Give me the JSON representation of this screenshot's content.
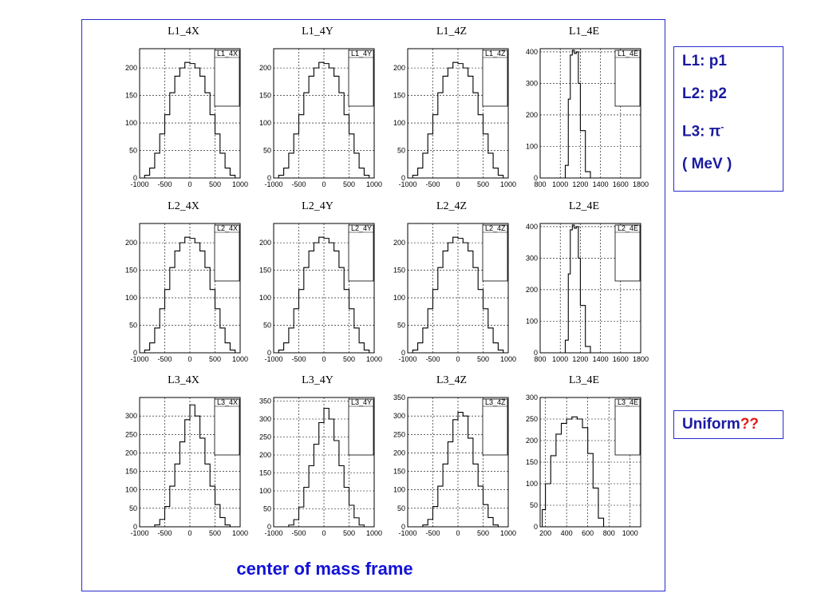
{
  "legend": {
    "l1": "L1: p1",
    "l2": "L2: p2",
    "l3_prefix": "L3: π",
    "l3_sup": "-",
    "unit": "( MeV )"
  },
  "note": {
    "text": "Uniform",
    "mark": "??"
  },
  "caption": "center of mass frame",
  "colors": {
    "accent": "#1a1aa0",
    "frame": "#2a2ad0",
    "mark": "#e41a1a",
    "caption": "#1212d8"
  },
  "chart_data": [
    {
      "type": "histogram",
      "title": "L1_4X",
      "stats_title": "L1_4X",
      "x": [
        -1000,
        -900,
        -800,
        -700,
        -600,
        -500,
        -400,
        -300,
        -200,
        -100,
        0,
        100,
        200,
        300,
        400,
        500,
        600,
        700,
        800,
        900,
        1000
      ],
      "values": [
        0,
        5,
        18,
        45,
        80,
        115,
        155,
        185,
        200,
        210,
        208,
        200,
        185,
        155,
        115,
        80,
        45,
        18,
        5,
        0,
        0
      ],
      "xlim": [
        -1000,
        1000
      ],
      "ylim": [
        0,
        235
      ],
      "xticks": [
        -1000,
        -500,
        0,
        500,
        1000
      ],
      "yticks": [
        0,
        50,
        100,
        150,
        200
      ]
    },
    {
      "type": "histogram",
      "title": "L1_4Y",
      "stats_title": "L1_4Y",
      "x": [
        -1000,
        -900,
        -800,
        -700,
        -600,
        -500,
        -400,
        -300,
        -200,
        -100,
        0,
        100,
        200,
        300,
        400,
        500,
        600,
        700,
        800,
        900,
        1000
      ],
      "values": [
        0,
        5,
        18,
        45,
        80,
        115,
        155,
        185,
        200,
        210,
        208,
        200,
        185,
        155,
        115,
        80,
        45,
        18,
        5,
        0,
        0
      ],
      "xlim": [
        -1000,
        1000
      ],
      "ylim": [
        0,
        235
      ],
      "xticks": [
        -1000,
        -500,
        0,
        500,
        1000
      ],
      "yticks": [
        0,
        50,
        100,
        150,
        200
      ]
    },
    {
      "type": "histogram",
      "title": "L1_4Z",
      "stats_title": "L1_4Z",
      "x": [
        -1000,
        -900,
        -800,
        -700,
        -600,
        -500,
        -400,
        -300,
        -200,
        -100,
        0,
        100,
        200,
        300,
        400,
        500,
        600,
        700,
        800,
        900,
        1000
      ],
      "values": [
        0,
        5,
        18,
        45,
        80,
        115,
        155,
        185,
        200,
        210,
        208,
        200,
        185,
        155,
        115,
        80,
        45,
        18,
        5,
        0,
        0
      ],
      "xlim": [
        -1000,
        1000
      ],
      "ylim": [
        0,
        235
      ],
      "xticks": [
        -1000,
        -500,
        0,
        500,
        1000
      ],
      "yticks": [
        0,
        50,
        100,
        150,
        200
      ]
    },
    {
      "type": "histogram",
      "title": "L1_4E",
      "stats_title": "L1_4E",
      "x": [
        800,
        900,
        1000,
        1050,
        1080,
        1100,
        1120,
        1140,
        1160,
        1180,
        1200,
        1250,
        1300,
        1400,
        1800
      ],
      "values": [
        0,
        0,
        0,
        40,
        250,
        390,
        405,
        395,
        400,
        300,
        150,
        20,
        0,
        0,
        0
      ],
      "xlim": [
        800,
        1800
      ],
      "ylim": [
        0,
        410
      ],
      "xticks": [
        800,
        1000,
        1200,
        1400,
        1600,
        1800
      ],
      "yticks": [
        0,
        100,
        200,
        300,
        400
      ]
    },
    {
      "type": "histogram",
      "title": "L2_4X",
      "stats_title": "L2_4X",
      "x": [
        -1000,
        -900,
        -800,
        -700,
        -600,
        -500,
        -400,
        -300,
        -200,
        -100,
        0,
        100,
        200,
        300,
        400,
        500,
        600,
        700,
        800,
        900,
        1000
      ],
      "values": [
        0,
        5,
        18,
        45,
        80,
        115,
        155,
        185,
        200,
        210,
        208,
        200,
        185,
        155,
        115,
        80,
        45,
        18,
        5,
        0,
        0
      ],
      "xlim": [
        -1000,
        1000
      ],
      "ylim": [
        0,
        235
      ],
      "xticks": [
        -1000,
        -500,
        0,
        500,
        1000
      ],
      "yticks": [
        0,
        50,
        100,
        150,
        200
      ]
    },
    {
      "type": "histogram",
      "title": "L2_4Y",
      "stats_title": "L2_4Y",
      "x": [
        -1000,
        -900,
        -800,
        -700,
        -600,
        -500,
        -400,
        -300,
        -200,
        -100,
        0,
        100,
        200,
        300,
        400,
        500,
        600,
        700,
        800,
        900,
        1000
      ],
      "values": [
        0,
        5,
        18,
        45,
        80,
        115,
        155,
        185,
        200,
        210,
        208,
        200,
        185,
        155,
        115,
        80,
        45,
        18,
        5,
        0,
        0
      ],
      "xlim": [
        -1000,
        1000
      ],
      "ylim": [
        0,
        235
      ],
      "xticks": [
        -1000,
        -500,
        0,
        500,
        1000
      ],
      "yticks": [
        0,
        50,
        100,
        150,
        200
      ]
    },
    {
      "type": "histogram",
      "title": "L2_4Z",
      "stats_title": "L2_4Z",
      "x": [
        -1000,
        -900,
        -800,
        -700,
        -600,
        -500,
        -400,
        -300,
        -200,
        -100,
        0,
        100,
        200,
        300,
        400,
        500,
        600,
        700,
        800,
        900,
        1000
      ],
      "values": [
        0,
        5,
        18,
        45,
        80,
        115,
        155,
        185,
        200,
        210,
        208,
        200,
        185,
        155,
        115,
        80,
        45,
        18,
        5,
        0,
        0
      ],
      "xlim": [
        -1000,
        1000
      ],
      "ylim": [
        0,
        235
      ],
      "xticks": [
        -1000,
        -500,
        0,
        500,
        1000
      ],
      "yticks": [
        0,
        50,
        100,
        150,
        200
      ]
    },
    {
      "type": "histogram",
      "title": "L2_4E",
      "stats_title": "L2_4E",
      "x": [
        800,
        900,
        1000,
        1050,
        1080,
        1100,
        1120,
        1140,
        1160,
        1180,
        1200,
        1250,
        1300,
        1400,
        1800
      ],
      "values": [
        0,
        0,
        0,
        40,
        250,
        390,
        405,
        395,
        400,
        300,
        150,
        20,
        0,
        0,
        0
      ],
      "xlim": [
        800,
        1800
      ],
      "ylim": [
        0,
        410
      ],
      "xticks": [
        800,
        1000,
        1200,
        1400,
        1600,
        1800
      ],
      "yticks": [
        0,
        100,
        200,
        300,
        400
      ]
    },
    {
      "type": "histogram",
      "title": "L3_4X",
      "stats_title": "L3_4X",
      "x": [
        -1000,
        -800,
        -700,
        -600,
        -500,
        -400,
        -300,
        -200,
        -100,
        0,
        100,
        200,
        300,
        400,
        500,
        600,
        700,
        800,
        1000
      ],
      "values": [
        0,
        0,
        5,
        20,
        55,
        110,
        170,
        230,
        290,
        330,
        300,
        240,
        170,
        110,
        60,
        25,
        5,
        0,
        0
      ],
      "xlim": [
        -1000,
        1000
      ],
      "ylim": [
        0,
        350
      ],
      "xticks": [
        -1000,
        -500,
        0,
        500,
        1000
      ],
      "yticks": [
        0,
        50,
        100,
        150,
        200,
        250,
        300
      ]
    },
    {
      "type": "histogram",
      "title": "L3_4Y",
      "stats_title": "L3_4Y",
      "x": [
        -1000,
        -800,
        -700,
        -600,
        -500,
        -400,
        -300,
        -200,
        -100,
        0,
        100,
        200,
        300,
        400,
        500,
        600,
        700,
        800,
        1000
      ],
      "values": [
        0,
        0,
        5,
        20,
        55,
        110,
        170,
        230,
        290,
        330,
        300,
        240,
        170,
        110,
        60,
        25,
        5,
        0,
        0
      ],
      "xlim": [
        -1000,
        1000
      ],
      "ylim": [
        0,
        360
      ],
      "xticks": [
        -1000,
        -500,
        0,
        500,
        1000
      ],
      "yticks": [
        0,
        50,
        100,
        150,
        200,
        250,
        300,
        350
      ]
    },
    {
      "type": "histogram",
      "title": "L3_4Z",
      "stats_title": "L3_4Z",
      "x": [
        -1000,
        -800,
        -700,
        -600,
        -500,
        -400,
        -300,
        -200,
        -100,
        0,
        100,
        200,
        300,
        400,
        500,
        600,
        700,
        800,
        1000
      ],
      "values": [
        0,
        0,
        5,
        20,
        55,
        110,
        170,
        230,
        290,
        310,
        300,
        240,
        170,
        110,
        60,
        25,
        5,
        0,
        0
      ],
      "xlim": [
        -1000,
        1000
      ],
      "ylim": [
        0,
        350
      ],
      "xticks": [
        -1000,
        -500,
        0,
        500,
        1000
      ],
      "yticks": [
        0,
        50,
        100,
        150,
        200,
        250,
        300,
        350
      ]
    },
    {
      "type": "histogram",
      "title": "L3_4E",
      "stats_title": "L3_4E",
      "x": [
        150,
        170,
        200,
        250,
        300,
        350,
        400,
        450,
        500,
        550,
        600,
        650,
        700,
        750,
        1000
      ],
      "values": [
        0,
        40,
        100,
        165,
        215,
        240,
        250,
        255,
        250,
        230,
        170,
        90,
        20,
        0,
        0
      ],
      "xlim": [
        150,
        1100
      ],
      "ylim": [
        0,
        300
      ],
      "xticks": [
        200,
        400,
        600,
        800,
        1000
      ],
      "yticks": [
        0,
        50,
        100,
        150,
        200,
        250,
        300
      ]
    }
  ]
}
